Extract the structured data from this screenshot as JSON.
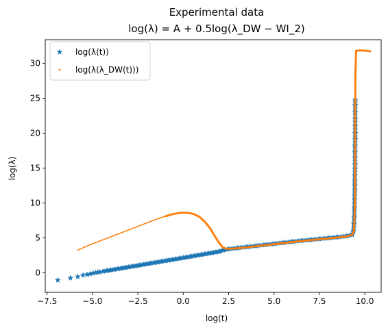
{
  "chart_data": {
    "type": "scatter",
    "title": "Experimental data",
    "subtitle": "log(λ) = A + 0.5log(λ_DW − WI_2)",
    "xlabel": "log(t)",
    "ylabel": "log(λ)",
    "xlim": [
      -7.6,
      10.9
    ],
    "ylim": [
      -2.8,
      33.4
    ],
    "x_ticks": [
      -7.5,
      -5.0,
      -2.5,
      0.0,
      2.5,
      5.0,
      7.5,
      10.0
    ],
    "x_tick_labels": [
      "−7.5",
      "−5.0",
      "−2.5",
      "0.0",
      "2.5",
      "5.0",
      "7.5",
      "10.0"
    ],
    "y_ticks": [
      0,
      5,
      10,
      15,
      20,
      25,
      30
    ],
    "y_tick_labels": [
      "0",
      "5",
      "10",
      "15",
      "20",
      "25",
      "30"
    ],
    "grid": false,
    "legend_position": "top-left",
    "series": [
      {
        "name": "log(λ(t))",
        "marker": "star",
        "color": "#1f77b4",
        "points": [
          [
            -6.91,
            -1.05
          ],
          [
            -6.21,
            -0.75
          ],
          [
            -5.81,
            -0.55
          ],
          [
            -5.52,
            -0.35
          ],
          [
            -5.3,
            -0.25
          ],
          [
            -5.12,
            -0.15
          ],
          [
            -4.97,
            -0.05
          ],
          [
            -4.83,
            0.02
          ],
          [
            -4.71,
            0.08
          ],
          [
            -4.61,
            0.12
          ],
          [
            -4.42,
            0.2
          ],
          [
            -4.2,
            0.3
          ],
          [
            -4.0,
            0.38
          ],
          [
            -3.8,
            0.48
          ],
          [
            -3.6,
            0.56
          ],
          [
            -3.4,
            0.65
          ],
          [
            -3.2,
            0.74
          ],
          [
            -3.0,
            0.83
          ],
          [
            -2.8,
            0.92
          ],
          [
            -2.6,
            1.0
          ],
          [
            -2.4,
            1.09
          ],
          [
            -2.2,
            1.18
          ],
          [
            -2.0,
            1.27
          ],
          [
            -1.8,
            1.36
          ],
          [
            -1.6,
            1.44
          ],
          [
            -1.4,
            1.53
          ],
          [
            -1.2,
            1.62
          ],
          [
            -1.0,
            1.71
          ],
          [
            -0.8,
            1.8
          ],
          [
            -0.6,
            1.88
          ],
          [
            -0.4,
            1.97
          ],
          [
            -0.2,
            2.06
          ],
          [
            0.0,
            2.15
          ],
          [
            0.2,
            2.24
          ],
          [
            0.4,
            2.33
          ],
          [
            0.6,
            2.42
          ],
          [
            0.8,
            2.51
          ],
          [
            1.0,
            2.6
          ],
          [
            1.2,
            2.69
          ],
          [
            1.4,
            2.78
          ],
          [
            1.6,
            2.87
          ],
          [
            1.8,
            2.96
          ],
          [
            2.0,
            3.05
          ],
          [
            2.2,
            3.25
          ],
          [
            2.5,
            3.4
          ],
          [
            3.0,
            3.55
          ],
          [
            3.5,
            3.7
          ],
          [
            4.0,
            3.85
          ],
          [
            4.5,
            4.0
          ],
          [
            5.0,
            4.15
          ],
          [
            5.5,
            4.3
          ],
          [
            6.0,
            4.45
          ],
          [
            6.5,
            4.6
          ],
          [
            7.0,
            4.72
          ],
          [
            7.5,
            4.85
          ],
          [
            8.0,
            4.98
          ],
          [
            8.5,
            5.1
          ],
          [
            9.0,
            5.25
          ],
          [
            9.3,
            5.45
          ],
          [
            9.38,
            6.0
          ],
          [
            9.4,
            7.0
          ],
          [
            9.42,
            8.0
          ],
          [
            9.43,
            9.2
          ],
          [
            9.44,
            10.6
          ],
          [
            9.44,
            11.2
          ],
          [
            9.45,
            11.8
          ],
          [
            9.45,
            12.5
          ],
          [
            9.45,
            13.2
          ],
          [
            9.45,
            14.0
          ],
          [
            9.46,
            14.8
          ],
          [
            9.46,
            15.6
          ],
          [
            9.46,
            16.4
          ],
          [
            9.46,
            17.3
          ],
          [
            9.46,
            18.2
          ],
          [
            9.47,
            19.1
          ],
          [
            9.47,
            20.0
          ],
          [
            9.47,
            21.0
          ],
          [
            9.47,
            22.0
          ],
          [
            9.47,
            23.0
          ],
          [
            9.47,
            24.0
          ],
          [
            9.47,
            24.8
          ]
        ]
      },
      {
        "name": "log(λ(λ_DW(t)))",
        "marker": "dot",
        "color": "#ff7f0e",
        "points": [
          [
            -5.81,
            3.25
          ],
          [
            -5.5,
            3.6
          ],
          [
            -5.2,
            3.95
          ],
          [
            -5.0,
            4.15
          ],
          [
            -4.7,
            4.45
          ],
          [
            -4.4,
            4.75
          ],
          [
            -4.1,
            5.05
          ],
          [
            -3.8,
            5.35
          ],
          [
            -3.5,
            5.65
          ],
          [
            -3.2,
            5.95
          ],
          [
            -2.9,
            6.25
          ],
          [
            -2.6,
            6.55
          ],
          [
            -2.3,
            6.85
          ],
          [
            -2.0,
            7.15
          ],
          [
            -1.7,
            7.45
          ],
          [
            -1.4,
            7.75
          ],
          [
            -1.1,
            8.0
          ],
          [
            -0.8,
            8.25
          ],
          [
            -0.5,
            8.45
          ],
          [
            -0.2,
            8.58
          ],
          [
            0.0,
            8.62
          ],
          [
            0.3,
            8.58
          ],
          [
            0.6,
            8.4
          ],
          [
            0.9,
            8.0
          ],
          [
            1.2,
            7.3
          ],
          [
            1.5,
            6.3
          ],
          [
            1.75,
            5.2
          ],
          [
            2.0,
            4.2
          ],
          [
            2.2,
            3.6
          ],
          [
            2.4,
            3.45
          ],
          [
            2.7,
            3.45
          ],
          [
            3.0,
            3.52
          ],
          [
            3.5,
            3.65
          ],
          [
            4.0,
            3.8
          ],
          [
            4.5,
            3.95
          ],
          [
            5.0,
            4.1
          ],
          [
            5.5,
            4.25
          ],
          [
            6.0,
            4.4
          ],
          [
            6.5,
            4.55
          ],
          [
            7.0,
            4.68
          ],
          [
            7.5,
            4.8
          ],
          [
            8.0,
            4.93
          ],
          [
            8.5,
            5.05
          ],
          [
            9.0,
            5.2
          ],
          [
            9.3,
            5.45
          ],
          [
            9.4,
            6.0
          ],
          [
            9.43,
            8.0
          ],
          [
            9.45,
            10.0
          ],
          [
            9.46,
            12.0
          ],
          [
            9.46,
            14.0
          ],
          [
            9.47,
            16.0
          ],
          [
            9.47,
            18.0
          ],
          [
            9.47,
            20.0
          ],
          [
            9.47,
            22.0
          ],
          [
            9.47,
            24.0
          ],
          [
            9.48,
            26.0
          ],
          [
            9.48,
            28.0
          ],
          [
            9.5,
            30.0
          ],
          [
            9.52,
            31.8
          ],
          [
            9.7,
            31.85
          ],
          [
            9.9,
            31.85
          ],
          [
            10.1,
            31.8
          ],
          [
            10.3,
            31.75
          ]
        ]
      }
    ]
  }
}
